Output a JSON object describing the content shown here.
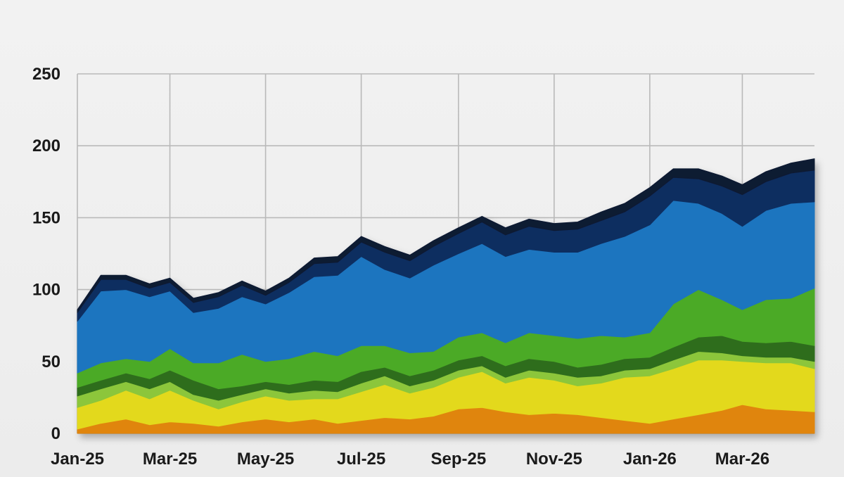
{
  "chart_data": {
    "type": "area",
    "stacked": true,
    "title": "",
    "xlabel": "",
    "ylabel": "",
    "ylim": [
      0,
      250
    ],
    "yticks": [
      0,
      50,
      100,
      150,
      200,
      250
    ],
    "x_tick_labels": [
      "Jan-25",
      "Mar-25",
      "May-25",
      "Jul-25",
      "Sep-25",
      "Nov-25",
      "Jan-26",
      "Mar-26"
    ],
    "x": [
      "2025-01-01",
      "2025-01-16",
      "2025-02-01",
      "2025-02-16",
      "2025-03-01",
      "2025-03-16",
      "2025-04-01",
      "2025-04-16",
      "2025-05-01",
      "2025-05-16",
      "2025-06-01",
      "2025-06-16",
      "2025-07-01",
      "2025-07-16",
      "2025-08-01",
      "2025-08-16",
      "2025-09-01",
      "2025-09-16",
      "2025-10-01",
      "2025-10-16",
      "2025-11-01",
      "2025-11-16",
      "2025-12-01",
      "2025-12-16",
      "2026-01-01",
      "2026-01-16",
      "2026-02-01",
      "2026-02-16",
      "2026-03-01",
      "2026-03-16",
      "2026-04-01",
      "2026-04-16"
    ],
    "grid": true,
    "legend": "none",
    "series": [
      {
        "color": "#e0850f",
        "values": [
          3,
          7,
          10,
          6,
          8,
          7,
          5,
          8,
          10,
          8,
          10,
          7,
          9,
          11,
          10,
          12,
          17,
          18,
          15,
          13,
          14,
          13,
          11,
          9,
          7,
          10,
          13,
          16,
          20,
          17,
          16,
          15
        ]
      },
      {
        "color": "#e3d91c",
        "values": [
          15,
          16,
          20,
          18,
          22,
          16,
          12,
          14,
          16,
          15,
          14,
          17,
          20,
          23,
          18,
          20,
          22,
          25,
          20,
          26,
          23,
          20,
          24,
          30,
          33,
          35,
          38,
          35,
          30,
          32,
          33,
          30
        ]
      },
      {
        "color": "#8cc63a",
        "values": [
          8,
          8,
          6,
          7,
          6,
          4,
          6,
          5,
          5,
          5,
          6,
          5,
          6,
          6,
          5,
          5,
          5,
          4,
          4,
          5,
          5,
          6,
          5,
          5,
          5,
          6,
          6,
          5,
          4,
          4,
          4,
          5
        ]
      },
      {
        "color": "#2f6d1e",
        "values": [
          6,
          6,
          6,
          7,
          8,
          10,
          8,
          6,
          5,
          6,
          7,
          7,
          8,
          6,
          7,
          7,
          7,
          7,
          8,
          8,
          8,
          7,
          8,
          8,
          8,
          9,
          10,
          12,
          10,
          10,
          11,
          11
        ]
      },
      {
        "color": "#4caa28",
        "values": [
          10,
          12,
          10,
          12,
          15,
          12,
          18,
          22,
          14,
          18,
          20,
          18,
          18,
          15,
          16,
          13,
          16,
          16,
          16,
          18,
          18,
          20,
          20,
          15,
          17,
          30,
          33,
          25,
          22,
          30,
          30,
          40
        ]
      },
      {
        "color": "#1c74bf",
        "values": [
          36,
          50,
          48,
          45,
          40,
          35,
          38,
          40,
          40,
          46,
          52,
          56,
          62,
          53,
          52,
          60,
          58,
          62,
          60,
          58,
          58,
          60,
          64,
          70,
          75,
          72,
          60,
          60,
          58,
          62,
          66,
          60
        ]
      },
      {
        "color": "#0f2e60",
        "values": [
          6,
          8,
          7,
          6,
          6,
          7,
          8,
          8,
          6,
          7,
          9,
          9,
          10,
          12,
          12,
          13,
          14,
          15,
          15,
          16,
          15,
          16,
          16,
          17,
          20,
          16,
          17,
          19,
          22,
          20,
          21,
          22
        ]
      },
      {
        "color": "#0b1a33",
        "values": [
          2,
          3,
          3,
          3,
          3,
          3,
          3,
          3,
          3,
          3,
          4,
          4,
          4,
          4,
          4,
          4,
          4,
          4,
          5,
          5,
          5,
          5,
          6,
          6,
          6,
          6,
          7,
          7,
          7,
          7,
          7,
          8
        ]
      }
    ]
  }
}
